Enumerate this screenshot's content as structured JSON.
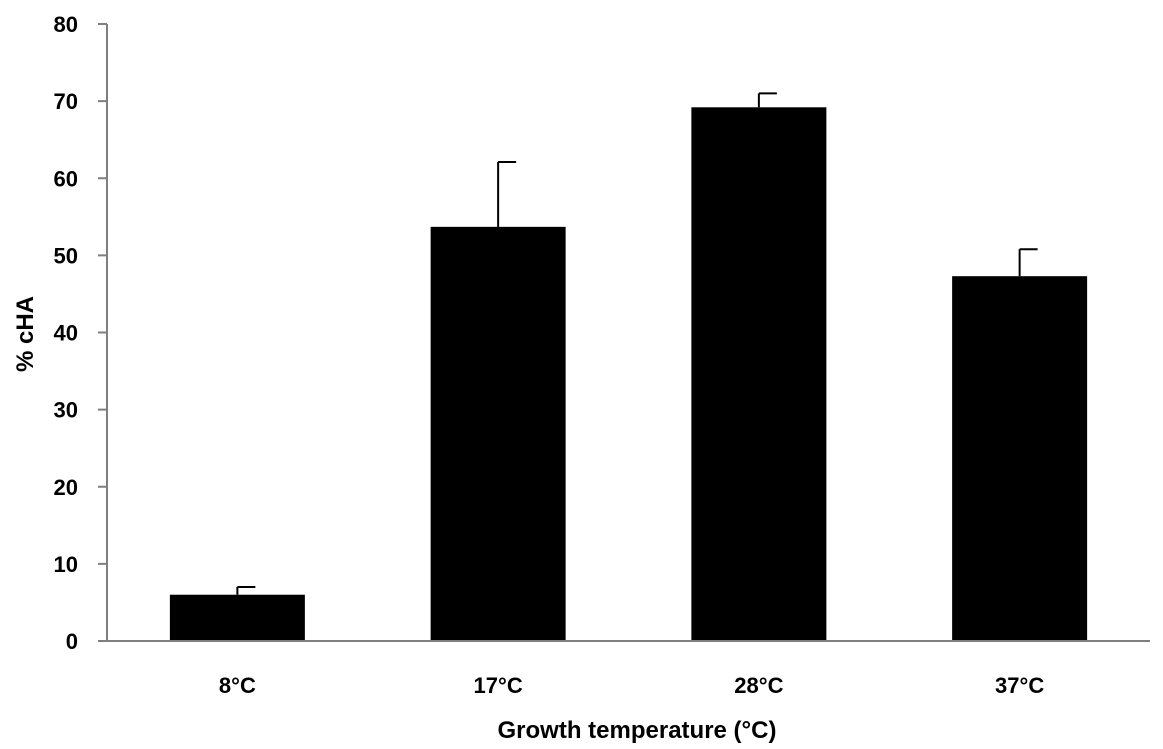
{
  "chart_data": {
    "type": "bar",
    "title": "",
    "xlabel": "Growth temperature (°C)",
    "ylabel": "% cHA",
    "categories": [
      "8°C",
      "17°C",
      "28°C",
      "37°C"
    ],
    "values": [
      6,
      53.7,
      69.2,
      47.3
    ],
    "error_upper": [
      7.0,
      62.1,
      71.0,
      50.8
    ],
    "ylim": [
      0,
      80
    ],
    "yticks": [
      "0",
      "10",
      "20",
      "30",
      "40",
      "50",
      "60",
      "70",
      "80"
    ],
    "grid": false,
    "colors": {
      "bar": "#000000",
      "axis": "#7f7f7f"
    }
  }
}
